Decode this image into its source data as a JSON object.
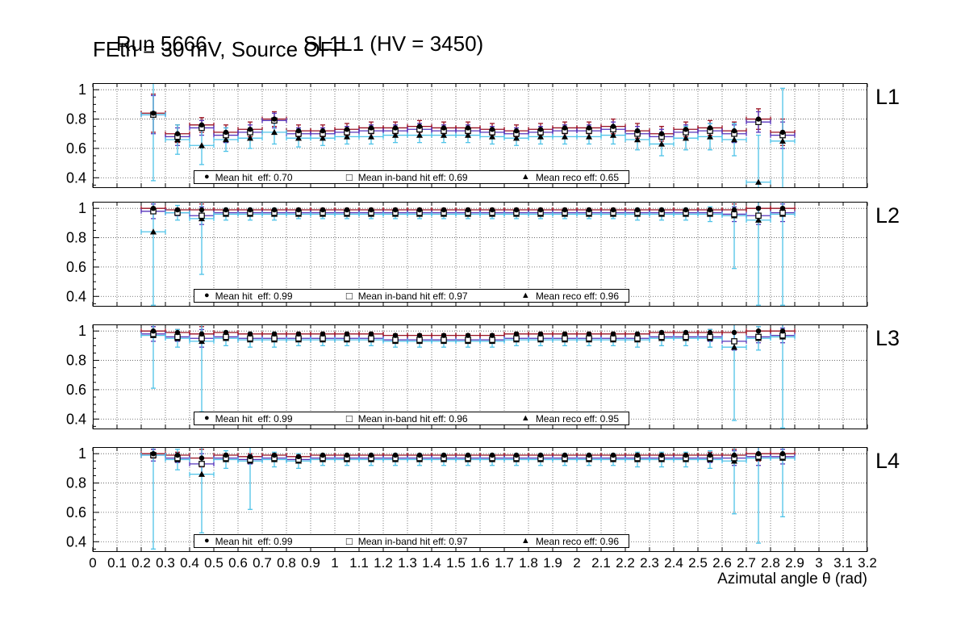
{
  "header": {
    "run": "Run 5666",
    "config": "SL1L1 (HV = 3450)",
    "subtitle": "FEth = 30 mV, Source OFF"
  },
  "chart_data": {
    "type": "scatter",
    "title": "Run 5666 SL1L1 (HV = 3450) FEth = 30 mV, Source OFF",
    "xlabel": "Azimutal angle θ (rad)",
    "xlim": [
      0,
      3.2
    ],
    "xtick_step": 0.1,
    "ylim": [
      0.33,
      1.045
    ],
    "yticks": [
      0.4,
      0.6,
      0.8,
      1
    ],
    "grid": "dotted",
    "marker_color": "#000000",
    "x": [
      0.25,
      0.35,
      0.45,
      0.55,
      0.65,
      0.75,
      0.85,
      0.95,
      1.05,
      1.15,
      1.25,
      1.35,
      1.45,
      1.55,
      1.65,
      1.75,
      1.85,
      1.95,
      2.05,
      2.15,
      2.25,
      2.35,
      2.45,
      2.55,
      2.65,
      2.75,
      2.85
    ],
    "panels": [
      {
        "label": "L1",
        "legend": [
          {
            "marker": "circle",
            "label": "Mean hit  eff: 0.70"
          },
          {
            "marker": "square",
            "label": "Mean in-band hit eff: 0.69"
          },
          {
            "marker": "triangle",
            "label": "Mean reco eff: 0.65"
          }
        ],
        "series": [
          {
            "name": "hit",
            "marker": "circle",
            "err_color": "#991122",
            "values": [
              0.84,
              0.7,
              0.76,
              0.71,
              0.73,
              0.8,
              0.72,
              0.72,
              0.73,
              0.74,
              0.74,
              0.75,
              0.74,
              0.74,
              0.73,
              0.72,
              0.73,
              0.74,
              0.74,
              0.75,
              0.72,
              0.7,
              0.73,
              0.74,
              0.72,
              0.8,
              0.71
            ],
            "errors": [
              0.13,
              0.06,
              0.05,
              0.05,
              0.05,
              0.05,
              0.04,
              0.04,
              0.04,
              0.04,
              0.04,
              0.04,
              0.04,
              0.04,
              0.04,
              0.04,
              0.04,
              0.04,
              0.04,
              0.05,
              0.05,
              0.05,
              0.05,
              0.05,
              0.06,
              0.07,
              0.09
            ]
          },
          {
            "name": "inband",
            "marker": "square",
            "err_color": "#5533bb",
            "values": [
              0.83,
              0.68,
              0.74,
              0.69,
              0.71,
              0.79,
              0.7,
              0.7,
              0.71,
              0.72,
              0.72,
              0.73,
              0.72,
              0.72,
              0.71,
              0.7,
              0.71,
              0.72,
              0.72,
              0.73,
              0.7,
              0.68,
              0.71,
              0.72,
              0.7,
              0.78,
              0.69
            ],
            "errors": [
              0.13,
              0.06,
              0.05,
              0.05,
              0.05,
              0.05,
              0.04,
              0.04,
              0.04,
              0.04,
              0.04,
              0.04,
              0.04,
              0.04,
              0.04,
              0.04,
              0.04,
              0.04,
              0.04,
              0.05,
              0.05,
              0.05,
              0.05,
              0.05,
              0.06,
              0.07,
              0.09
            ]
          },
          {
            "name": "reco",
            "marker": "triangle",
            "err_color": "#4fc3e8",
            "values": [
              0.83,
              0.66,
              0.62,
              0.66,
              0.67,
              0.71,
              0.67,
              0.67,
              0.68,
              0.68,
              0.69,
              0.69,
              0.69,
              0.69,
              0.68,
              0.67,
              0.68,
              0.68,
              0.68,
              0.69,
              0.66,
              0.63,
              0.67,
              0.68,
              0.66,
              0.37,
              0.65
            ],
            "errors": [
              0.45,
              0.1,
              0.13,
              0.08,
              0.07,
              0.08,
              0.06,
              0.05,
              0.05,
              0.05,
              0.05,
              0.05,
              0.05,
              0.05,
              0.05,
              0.05,
              0.05,
              0.05,
              0.05,
              0.06,
              0.07,
              0.08,
              0.08,
              0.09,
              0.11,
              0.32,
              0.36
            ]
          }
        ]
      },
      {
        "label": "L2",
        "legend": [
          {
            "marker": "circle",
            "label": "Mean hit  eff: 0.99"
          },
          {
            "marker": "square",
            "label": "Mean in-band hit eff: 0.97"
          },
          {
            "marker": "triangle",
            "label": "Mean reco eff: 0.96"
          }
        ],
        "series": [
          {
            "name": "hit",
            "marker": "circle",
            "err_color": "#991122",
            "values": [
              1.0,
              0.99,
              0.99,
              0.99,
              0.99,
              0.99,
              0.99,
              0.99,
              0.99,
              0.99,
              0.99,
              0.99,
              0.99,
              0.99,
              0.99,
              0.99,
              0.99,
              0.99,
              0.99,
              0.99,
              0.99,
              0.99,
              0.99,
              0.99,
              0.99,
              1.0,
              1.0
            ],
            "errors": [
              0.03,
              0.01,
              0.04,
              0.01,
              0.01,
              0.01,
              0.01,
              0.01,
              0.01,
              0.01,
              0.01,
              0.01,
              0.01,
              0.01,
              0.01,
              0.01,
              0.01,
              0.01,
              0.01,
              0.01,
              0.01,
              0.01,
              0.01,
              0.01,
              0.04,
              0.05,
              0.05
            ]
          },
          {
            "name": "inband",
            "marker": "square",
            "err_color": "#5533bb",
            "values": [
              0.98,
              0.97,
              0.95,
              0.97,
              0.97,
              0.97,
              0.97,
              0.97,
              0.97,
              0.97,
              0.97,
              0.97,
              0.97,
              0.97,
              0.97,
              0.97,
              0.97,
              0.97,
              0.97,
              0.97,
              0.97,
              0.97,
              0.97,
              0.97,
              0.96,
              0.95,
              0.97
            ],
            "errors": [
              0.05,
              0.02,
              0.06,
              0.02,
              0.02,
              0.02,
              0.02,
              0.02,
              0.02,
              0.02,
              0.02,
              0.02,
              0.02,
              0.02,
              0.02,
              0.02,
              0.02,
              0.02,
              0.02,
              0.02,
              0.02,
              0.02,
              0.02,
              0.02,
              0.05,
              0.06,
              0.06
            ]
          },
          {
            "name": "reco",
            "marker": "triangle",
            "err_color": "#4fc3e8",
            "values": [
              0.84,
              0.97,
              0.93,
              0.96,
              0.96,
              0.96,
              0.96,
              0.96,
              0.96,
              0.96,
              0.96,
              0.96,
              0.96,
              0.96,
              0.96,
              0.96,
              0.96,
              0.96,
              0.96,
              0.96,
              0.96,
              0.96,
              0.96,
              0.96,
              0.95,
              0.92,
              0.96
            ],
            "errors": [
              0.5,
              0.05,
              0.38,
              0.04,
              0.04,
              0.04,
              0.03,
              0.03,
              0.03,
              0.03,
              0.03,
              0.03,
              0.03,
              0.03,
              0.03,
              0.03,
              0.03,
              0.03,
              0.03,
              0.03,
              0.04,
              0.04,
              0.04,
              0.05,
              0.36,
              0.58,
              0.62
            ]
          }
        ]
      },
      {
        "label": "L3",
        "legend": [
          {
            "marker": "circle",
            "label": "Mean hit  eff: 0.99"
          },
          {
            "marker": "square",
            "label": "Mean in-band hit eff: 0.96"
          },
          {
            "marker": "triangle",
            "label": "Mean reco eff: 0.95"
          }
        ],
        "series": [
          {
            "name": "hit",
            "marker": "circle",
            "err_color": "#991122",
            "values": [
              1.0,
              0.99,
              0.98,
              0.99,
              0.98,
              0.98,
              0.98,
              0.98,
              0.98,
              0.98,
              0.97,
              0.97,
              0.97,
              0.97,
              0.97,
              0.98,
              0.98,
              0.98,
              0.98,
              0.98,
              0.98,
              0.99,
              0.99,
              0.99,
              0.99,
              1.0,
              1.0
            ],
            "errors": [
              0.03,
              0.02,
              0.05,
              0.01,
              0.01,
              0.01,
              0.01,
              0.01,
              0.01,
              0.01,
              0.01,
              0.01,
              0.01,
              0.01,
              0.01,
              0.01,
              0.01,
              0.01,
              0.01,
              0.01,
              0.01,
              0.01,
              0.01,
              0.02,
              0.05,
              0.03,
              0.04
            ]
          },
          {
            "name": "inband",
            "marker": "square",
            "err_color": "#5533bb",
            "values": [
              0.98,
              0.96,
              0.95,
              0.96,
              0.95,
              0.95,
              0.95,
              0.95,
              0.95,
              0.95,
              0.94,
              0.94,
              0.94,
              0.94,
              0.94,
              0.95,
              0.95,
              0.95,
              0.95,
              0.95,
              0.95,
              0.96,
              0.96,
              0.96,
              0.93,
              0.96,
              0.97
            ],
            "errors": [
              0.05,
              0.03,
              0.06,
              0.02,
              0.02,
              0.02,
              0.02,
              0.02,
              0.02,
              0.02,
              0.02,
              0.02,
              0.02,
              0.02,
              0.02,
              0.02,
              0.02,
              0.02,
              0.02,
              0.02,
              0.02,
              0.02,
              0.02,
              0.03,
              0.06,
              0.04,
              0.05
            ]
          },
          {
            "name": "reco",
            "marker": "triangle",
            "err_color": "#4fc3e8",
            "values": [
              0.97,
              0.95,
              0.93,
              0.95,
              0.94,
              0.94,
              0.94,
              0.94,
              0.94,
              0.94,
              0.93,
              0.93,
              0.93,
              0.93,
              0.93,
              0.94,
              0.94,
              0.94,
              0.94,
              0.94,
              0.94,
              0.95,
              0.95,
              0.95,
              0.89,
              0.95,
              0.96
            ],
            "errors": [
              0.36,
              0.06,
              0.48,
              0.05,
              0.05,
              0.05,
              0.04,
              0.04,
              0.04,
              0.04,
              0.04,
              0.04,
              0.04,
              0.04,
              0.04,
              0.04,
              0.04,
              0.04,
              0.04,
              0.04,
              0.05,
              0.05,
              0.05,
              0.06,
              0.5,
              0.08,
              0.62
            ]
          }
        ]
      },
      {
        "label": "L4",
        "legend": [
          {
            "marker": "circle",
            "label": "Mean hit  eff: 0.99"
          },
          {
            "marker": "square",
            "label": "Mean in-band hit eff: 0.97"
          },
          {
            "marker": "triangle",
            "label": "Mean reco eff: 0.96"
          }
        ],
        "series": [
          {
            "name": "hit",
            "marker": "circle",
            "err_color": "#991122",
            "values": [
              1.0,
              0.99,
              0.97,
              0.99,
              0.98,
              0.99,
              0.98,
              0.99,
              0.99,
              0.99,
              0.99,
              0.99,
              0.99,
              0.99,
              0.99,
              0.99,
              0.99,
              0.99,
              0.99,
              0.99,
              0.99,
              0.99,
              0.99,
              0.99,
              0.99,
              1.0,
              1.0
            ],
            "errors": [
              0.03,
              0.02,
              0.06,
              0.01,
              0.02,
              0.01,
              0.01,
              0.01,
              0.01,
              0.01,
              0.01,
              0.01,
              0.01,
              0.01,
              0.01,
              0.01,
              0.01,
              0.01,
              0.01,
              0.01,
              0.01,
              0.01,
              0.01,
              0.02,
              0.04,
              0.05,
              0.04
            ]
          },
          {
            "name": "inband",
            "marker": "square",
            "err_color": "#5533bb",
            "values": [
              0.99,
              0.97,
              0.93,
              0.97,
              0.96,
              0.97,
              0.96,
              0.97,
              0.97,
              0.97,
              0.97,
              0.97,
              0.97,
              0.97,
              0.97,
              0.97,
              0.97,
              0.97,
              0.97,
              0.97,
              0.97,
              0.97,
              0.97,
              0.97,
              0.97,
              0.98,
              0.98
            ],
            "errors": [
              0.04,
              0.03,
              0.07,
              0.02,
              0.03,
              0.02,
              0.02,
              0.02,
              0.02,
              0.02,
              0.02,
              0.02,
              0.02,
              0.02,
              0.02,
              0.02,
              0.02,
              0.02,
              0.02,
              0.02,
              0.02,
              0.02,
              0.02,
              0.03,
              0.05,
              0.06,
              0.05
            ]
          },
          {
            "name": "reco",
            "marker": "triangle",
            "err_color": "#4fc3e8",
            "values": [
              0.99,
              0.96,
              0.86,
              0.96,
              0.95,
              0.96,
              0.95,
              0.96,
              0.96,
              0.96,
              0.96,
              0.96,
              0.96,
              0.96,
              0.96,
              0.96,
              0.96,
              0.96,
              0.96,
              0.96,
              0.96,
              0.96,
              0.96,
              0.96,
              0.95,
              0.97,
              0.97
            ],
            "errors": [
              0.64,
              0.07,
              0.4,
              0.06,
              0.33,
              0.05,
              0.05,
              0.04,
              0.04,
              0.04,
              0.04,
              0.04,
              0.04,
              0.04,
              0.04,
              0.04,
              0.04,
              0.04,
              0.04,
              0.04,
              0.05,
              0.05,
              0.05,
              0.06,
              0.36,
              0.58,
              0.4
            ]
          }
        ]
      }
    ]
  }
}
